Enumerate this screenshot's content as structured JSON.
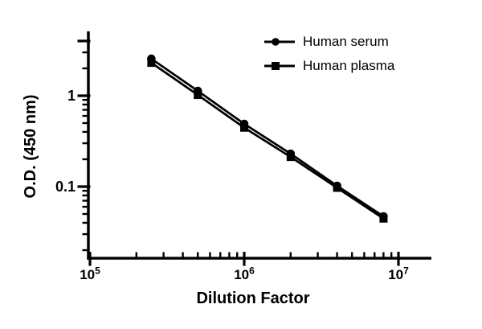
{
  "figure": {
    "background": "#ffffff",
    "ink": "#000000"
  },
  "chart_data": {
    "type": "line",
    "title": "",
    "xlabel": "Dilution Factor",
    "ylabel": "O.D. (450 nm)",
    "x_scale": "log",
    "y_scale": "log",
    "xlim": [
      100000,
      16500000
    ],
    "ylim": [
      0.016,
      5.2
    ],
    "grid": false,
    "legend_position": "top-right",
    "x_major_ticks": [
      {
        "value": 100000,
        "label": "10^5",
        "base": "10",
        "exp": "5"
      },
      {
        "value": 1000000,
        "label": "10^6",
        "base": "10",
        "exp": "6"
      },
      {
        "value": 10000000,
        "label": "10^7",
        "base": "10",
        "exp": "7"
      }
    ],
    "x_minor_ticks": [
      200000,
      300000,
      400000,
      500000,
      600000,
      700000,
      800000,
      900000,
      2000000,
      3000000,
      4000000,
      5000000,
      6000000,
      7000000,
      8000000,
      9000000
    ],
    "y_major_ticks": [
      {
        "value": 4,
        "label": ""
      },
      {
        "value": 1,
        "label": "1"
      },
      {
        "value": 0.1,
        "label": "0.1"
      }
    ],
    "y_minor_ticks": [
      3,
      2,
      0.9,
      0.8,
      0.7,
      0.6,
      0.5,
      0.4,
      0.3,
      0.2,
      0.09,
      0.08,
      0.07,
      0.06,
      0.05,
      0.04,
      0.03,
      0.02
    ],
    "x": [
      250000,
      500000,
      1000000,
      2000000,
      4000000,
      8000000
    ],
    "series": [
      {
        "name": "Human serum",
        "marker": "circle",
        "values": [
          2.55,
          1.13,
          0.49,
          0.23,
          0.102,
          0.047
        ]
      },
      {
        "name": "Human plasma",
        "marker": "square",
        "values": [
          2.3,
          1.02,
          0.445,
          0.212,
          0.097,
          0.0445
        ]
      }
    ]
  }
}
